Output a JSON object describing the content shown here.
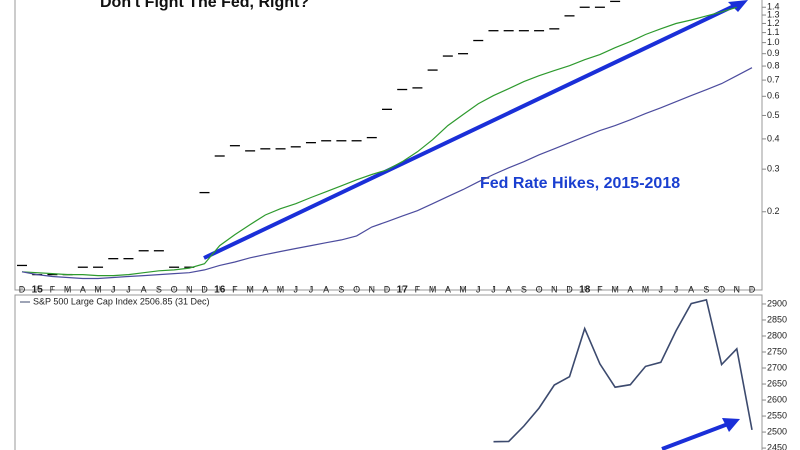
{
  "chart_data": [
    {
      "type": "line",
      "title": "Don't Fight The Fed, Right?",
      "annotation": "Fed Rate Hikes, 2015-2018",
      "log_scale": true,
      "categories": [
        "D",
        "15",
        "F",
        "M",
        "A",
        "M",
        "J",
        "J",
        "A",
        "S",
        "O",
        "N",
        "D",
        "16",
        "F",
        "M",
        "A",
        "M",
        "J",
        "J",
        "A",
        "S",
        "O",
        "N",
        "D",
        "17",
        "F",
        "M",
        "A",
        "M",
        "J",
        "J",
        "A",
        "S",
        "O",
        "N",
        "D",
        "18",
        "F",
        "M",
        "A",
        "M",
        "J",
        "J",
        "A",
        "S",
        "O",
        "N",
        "D"
      ],
      "ylim": [
        0.095,
        1.5
      ],
      "yticks": [
        0.2,
        0.3,
        0.4,
        0.5,
        0.6,
        0.7,
        0.8,
        0.9,
        {
          "value": 1,
          "label": "1.0"
        },
        1.1,
        1.2,
        1.3,
        1.4
      ],
      "series": [
        {
          "style": "dash",
          "color": "#000000",
          "values": [
            0.12,
            0.11,
            0.11,
            0.11,
            0.118,
            0.118,
            0.128,
            0.128,
            0.138,
            0.138,
            0.118,
            0.118,
            0.24,
            0.34,
            0.375,
            0.357,
            0.364,
            0.364,
            0.371,
            0.386,
            0.393,
            0.393,
            0.393,
            0.405,
            0.53,
            0.64,
            0.65,
            0.77,
            0.88,
            0.9,
            1.02,
            1.12,
            1.12,
            1.12,
            1.12,
            1.14,
            1.29,
            1.4,
            1.4,
            1.48,
            null,
            null,
            null,
            null,
            null,
            null,
            null,
            null,
            null
          ]
        },
        {
          "style": "line",
          "color": "#2e9a2e",
          "values": [
            0.113,
            0.112,
            0.111,
            0.11,
            0.11,
            0.109,
            0.109,
            0.11,
            0.112,
            0.114,
            0.115,
            0.117,
            0.122,
            0.145,
            0.161,
            0.177,
            0.194,
            0.206,
            0.216,
            0.229,
            0.242,
            0.256,
            0.271,
            0.285,
            0.298,
            0.322,
            0.354,
            0.397,
            0.454,
            0.504,
            0.559,
            0.604,
            0.645,
            0.69,
            0.73,
            0.766,
            0.803,
            0.85,
            0.892,
            0.953,
            1.01,
            1.08,
            1.14,
            1.2,
            1.24,
            1.29,
            1.34,
            1.4,
            null
          ]
        },
        {
          "style": "line",
          "color": "#4c4c9e",
          "values": [
            0.113,
            0.11,
            0.108,
            0.107,
            0.106,
            0.106,
            0.107,
            0.108,
            0.109,
            0.11,
            0.111,
            0.112,
            0.115,
            0.12,
            0.124,
            0.129,
            0.133,
            0.137,
            0.141,
            0.145,
            0.149,
            0.153,
            0.159,
            0.173,
            0.182,
            0.192,
            0.202,
            0.216,
            0.231,
            0.247,
            0.266,
            0.285,
            0.304,
            0.322,
            0.344,
            0.364,
            0.386,
            0.409,
            0.433,
            0.454,
            0.48,
            0.509,
            0.538,
            0.57,
            0.604,
            0.639,
            0.677,
            0.73,
            0.788
          ]
        }
      ]
    },
    {
      "type": "line",
      "legend": "S&P 500 Large Cap Index 2506.85 (31 Dec)",
      "color": "#3c4a6e",
      "values": [
        null,
        null,
        null,
        null,
        null,
        null,
        null,
        null,
        null,
        null,
        null,
        null,
        null,
        null,
        null,
        null,
        null,
        null,
        null,
        null,
        null,
        null,
        null,
        null,
        null,
        null,
        null,
        null,
        null,
        null,
        null,
        2470,
        2471,
        2519,
        2575,
        2647,
        2673,
        2823,
        2713,
        2640,
        2648,
        2705,
        2718,
        2816,
        2901,
        2913,
        2711,
        2760,
        2506.85
      ],
      "ylim": [
        2444,
        2928
      ],
      "yticks": [
        2450,
        2500,
        2550,
        2600,
        2650,
        2700,
        2750,
        2800,
        2850,
        2900
      ]
    }
  ]
}
